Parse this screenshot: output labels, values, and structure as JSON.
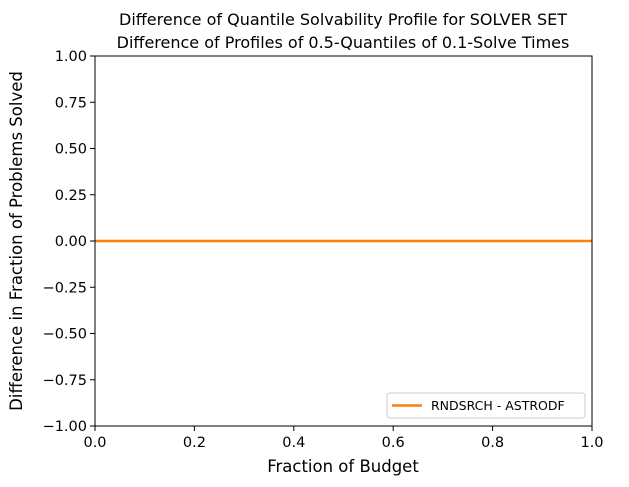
{
  "chart_data": {
    "type": "line",
    "title": "Difference of Quantile Solvability Profile for SOLVER SET",
    "subtitle": "Difference of Profiles of 0.5-Quantiles of 0.1-Solve Times",
    "xlabel": "Fraction of Budget",
    "ylabel": "Difference in Fraction of Problems Solved",
    "xlim": [
      0.0,
      1.0
    ],
    "ylim": [
      -1.0,
      1.0
    ],
    "xticks": [
      "0.0",
      "0.2",
      "0.4",
      "0.6",
      "0.8",
      "1.0"
    ],
    "yticks": [
      "1.00",
      "0.75",
      "0.50",
      "0.25",
      "0.00",
      "−0.25",
      "−0.50",
      "−0.75",
      "−1.00"
    ],
    "grid": false,
    "legend_position": "lower-right",
    "reference_line": {
      "y": 0.0,
      "style": "dashed",
      "color": "#555555"
    },
    "series": [
      {
        "name": "RNDSRCH - ASTRODF",
        "color": "#ff7f0e",
        "x": [
          0.0,
          1.0
        ],
        "y": [
          0.0,
          0.0
        ]
      }
    ]
  }
}
